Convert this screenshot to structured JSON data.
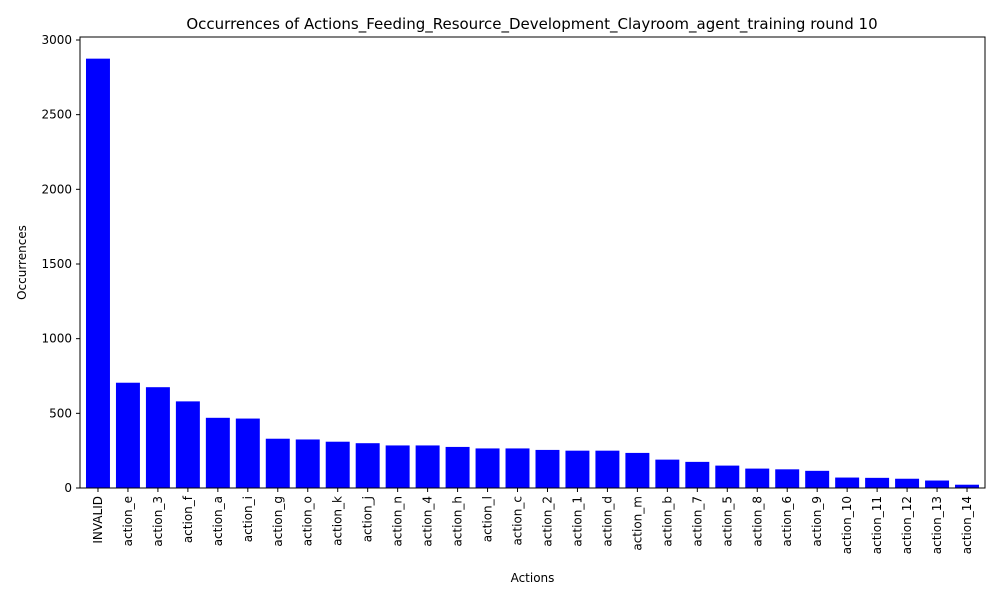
{
  "chart_data": {
    "type": "bar",
    "title": "Occurrences of Actions_Feeding_Resource_Development_Clayroom_agent_training round 10",
    "xlabel": "Actions",
    "ylabel": "Occurrences",
    "ylim": [
      0,
      3020
    ],
    "yticks": [
      "0",
      "500",
      "1000",
      "1500",
      "2000",
      "2500",
      "3000"
    ],
    "bar_color": "#0000ff",
    "grid": false,
    "categories": [
      "INVALID",
      "action_e",
      "action_3",
      "action_f",
      "action_a",
      "action_i",
      "action_g",
      "action_o",
      "action_k",
      "action_j",
      "action_n",
      "action_4",
      "action_h",
      "action_l",
      "action_c",
      "action_2",
      "action_1",
      "action_d",
      "action_m",
      "action_b",
      "action_7",
      "action_5",
      "action_8",
      "action_6",
      "action_9",
      "action_10",
      "action_11",
      "action_12",
      "action_13",
      "action_14"
    ],
    "values": [
      2875,
      705,
      675,
      580,
      470,
      465,
      330,
      325,
      310,
      300,
      285,
      285,
      275,
      265,
      265,
      255,
      250,
      250,
      235,
      190,
      175,
      150,
      130,
      125,
      115,
      70,
      68,
      62,
      50,
      22
    ]
  }
}
